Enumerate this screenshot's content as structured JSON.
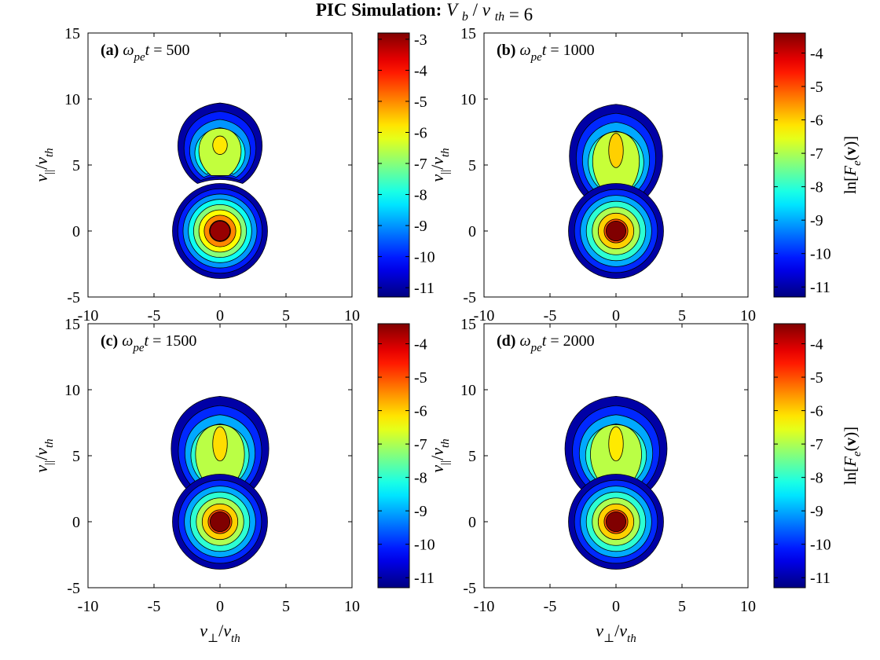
{
  "title": {
    "prefix": "PIC Simulation:",
    "var1": "V",
    "sub1": "b",
    "slash": "/",
    "var2": "v",
    "sub2": "th",
    "suffix": "= 6"
  },
  "axes": {
    "x_range": [
      -10,
      10
    ],
    "y_range": [
      -5,
      15
    ],
    "x_ticks": [
      -10,
      -5,
      0,
      5,
      10
    ],
    "y_ticks": [
      -5,
      0,
      5,
      10,
      15
    ],
    "xlabel": {
      "var": "v",
      "sub": "⊥",
      "slash": "/",
      "var2": "v",
      "sub2": "th"
    },
    "ylabel": {
      "var": "v",
      "sub": "||",
      "slash": "/",
      "var2": "v",
      "sub2": "th"
    }
  },
  "colorbar_label": {
    "pre": "ln[",
    "F": "F",
    "sub": "e",
    "mid": "(",
    "v": "v",
    "post": ")]"
  },
  "colors": {
    "jet_stops": [
      "#00008f",
      "#0000ff",
      "#0080ff",
      "#00ffff",
      "#80ff80",
      "#ffff00",
      "#ff8000",
      "#ff0000",
      "#800000"
    ]
  },
  "chart_data": [
    {
      "type": "heatmap",
      "panel": "(a)",
      "time_label": "t = 500",
      "omega": "ω",
      "omega_sub": "pe",
      "time": 500,
      "clim": [
        -11.3,
        -2.8
      ],
      "colorbar_ticks": [
        -3,
        -4,
        -5,
        -6,
        -7,
        -8,
        -9,
        -10,
        -11
      ],
      "contour_levels": [
        -11,
        -10,
        -9,
        -8,
        -7,
        -6,
        -5,
        -4,
        -3
      ],
      "core": {
        "center": [
          0,
          0
        ],
        "radius": 3.6,
        "peak": -3.0
      },
      "beam": {
        "center": [
          0,
          6.2
        ],
        "half_width": 3.8,
        "top": 9.7,
        "plateau": -6.5,
        "peak": -5.8,
        "bottom": 3.6
      }
    },
    {
      "type": "heatmap",
      "panel": "(b)",
      "time_label": "t = 1000",
      "omega": "ω",
      "omega_sub": "pe",
      "time": 1000,
      "clim": [
        -11.3,
        -3.4
      ],
      "colorbar_ticks": [
        -4,
        -5,
        -6,
        -7,
        -8,
        -9,
        -10,
        -11
      ],
      "contour_levels": [
        -11,
        -10,
        -9,
        -8,
        -7,
        -6,
        -5,
        -4
      ],
      "core": {
        "center": [
          0,
          0
        ],
        "radius": 3.6,
        "peak": -3.4
      },
      "beam": {
        "center": [
          0,
          5.8
        ],
        "half_width": 4.2,
        "top": 9.6,
        "plateau": -6.8,
        "peak": -6.0,
        "bottom": 2.2
      }
    },
    {
      "type": "heatmap",
      "panel": "(c)",
      "time_label": "t = 1500",
      "omega": "ω",
      "omega_sub": "pe",
      "time": 1500,
      "clim": [
        -11.3,
        -3.4
      ],
      "colorbar_ticks": [
        -4,
        -5,
        -6,
        -7,
        -8,
        -9,
        -10,
        -11
      ],
      "contour_levels": [
        -11,
        -10,
        -9,
        -8,
        -7,
        -6,
        -5,
        -4
      ],
      "core": {
        "center": [
          0,
          0
        ],
        "radius": 3.6,
        "peak": -3.4
      },
      "beam": {
        "center": [
          0,
          5.6
        ],
        "half_width": 4.4,
        "top": 9.5,
        "plateau": -6.9,
        "peak": -6.1,
        "bottom": 2.0
      }
    },
    {
      "type": "heatmap",
      "panel": "(d)",
      "time_label": "t = 2000",
      "omega": "ω",
      "omega_sub": "pe",
      "time": 2000,
      "clim": [
        -11.3,
        -3.4
      ],
      "colorbar_ticks": [
        -4,
        -5,
        -6,
        -7,
        -8,
        -9,
        -10,
        -11
      ],
      "contour_levels": [
        -11,
        -10,
        -9,
        -8,
        -7,
        -6,
        -5,
        -4
      ],
      "core": {
        "center": [
          0,
          0
        ],
        "radius": 3.6,
        "peak": -3.4
      },
      "beam": {
        "center": [
          0,
          5.6
        ],
        "half_width": 4.6,
        "top": 9.5,
        "plateau": -6.9,
        "peak": -6.2,
        "bottom": 2.0
      }
    }
  ]
}
